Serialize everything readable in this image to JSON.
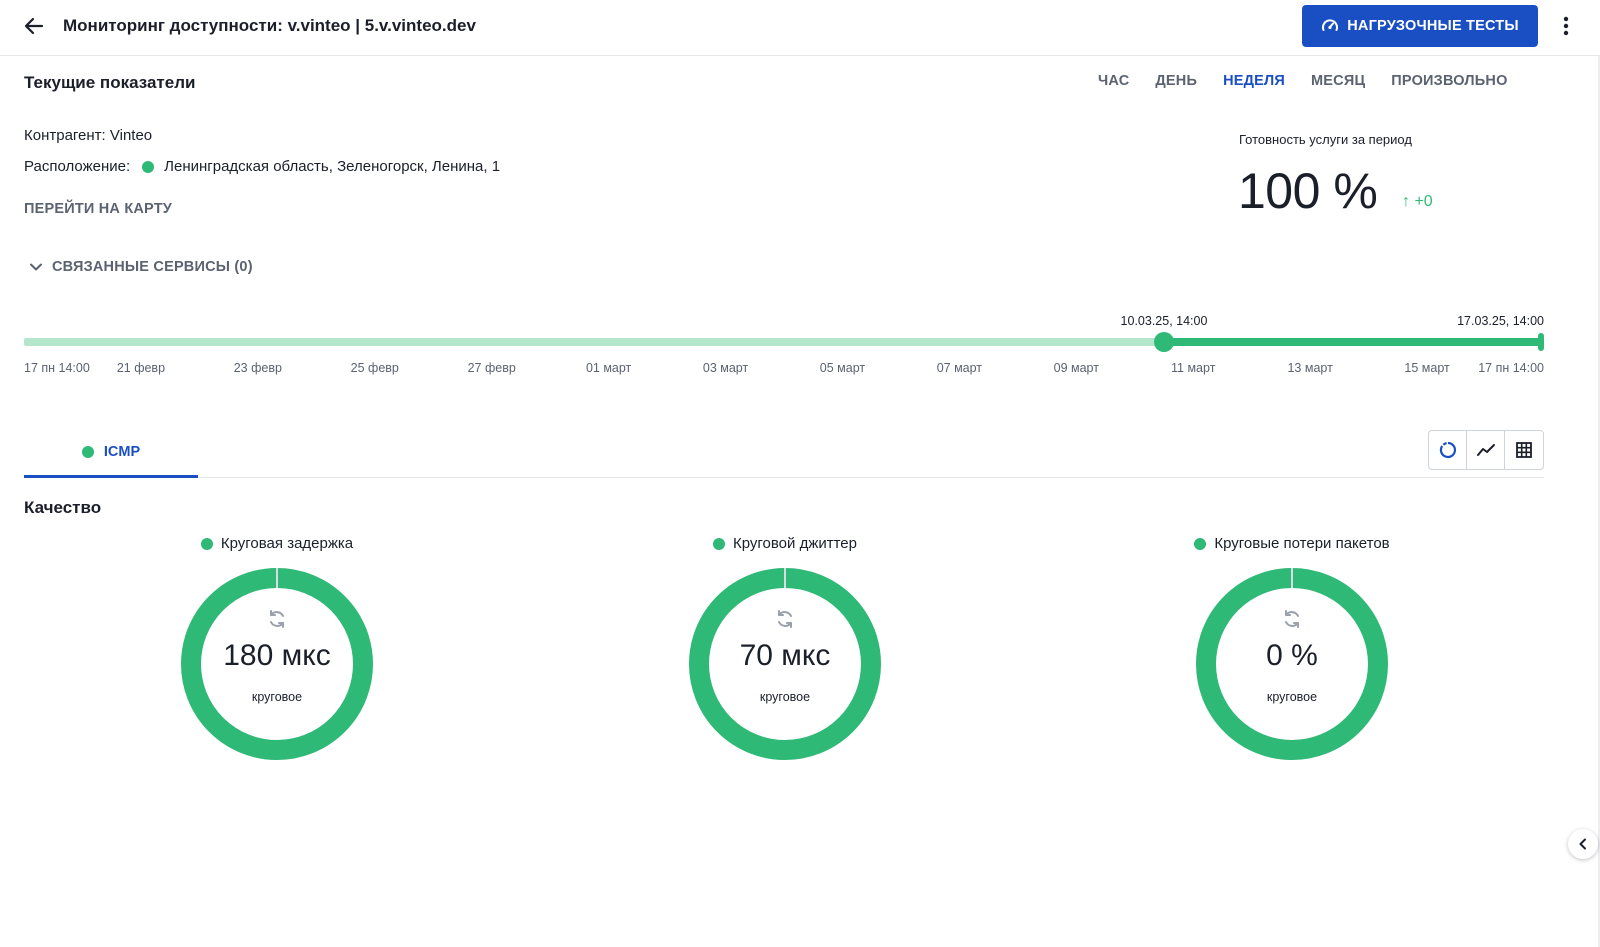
{
  "header": {
    "title": "Мониторинг доступности: v.vinteo | 5.v.vinteo.dev",
    "load_tests_label": "НАГРУЗОЧНЫЕ ТЕСТЫ"
  },
  "current": {
    "title": "Текущие показатели",
    "periods": [
      {
        "label": "ЧАС",
        "active": false
      },
      {
        "label": "ДЕНЬ",
        "active": false
      },
      {
        "label": "НЕДЕЛЯ",
        "active": true
      },
      {
        "label": "МЕСЯЦ",
        "active": false
      },
      {
        "label": "ПРОИЗВОЛЬНО",
        "active": false
      }
    ],
    "contractor": "Контрагент: Vinteo",
    "location_label": "Расположение:",
    "location_value": "Ленинградская область, Зеленогорск, Ленина, 1",
    "map_link": "ПЕРЕЙТИ НА КАРТУ",
    "related_services": "СВЯЗАННЫЕ СЕРВИСЫ (0)"
  },
  "availability": {
    "label": "Готовность услуги за период",
    "value": "100 %",
    "delta": "↑ +0"
  },
  "timeline": {
    "ticks": [
      "17 пн 14:00",
      "21 февр",
      "23 февр",
      "25 февр",
      "27 февр",
      "01 март",
      "03 март",
      "05 март",
      "07 март",
      "09 март",
      "11 март",
      "13 март",
      "15 март",
      "17 пн 14:00"
    ],
    "range_start_label": "10.03.25, 14:00",
    "range_end_label": "17.03.25, 14:00",
    "range_start_fraction": 0.75,
    "range_end_fraction": 1.0
  },
  "tabs": [
    {
      "label": "ICMP",
      "active": true
    }
  ],
  "quality": {
    "title": "Качество",
    "gauges": [
      {
        "legend": "Круговая задержка",
        "value": "180 мкс",
        "sub": "круговое",
        "fill": 1.0
      },
      {
        "legend": "Круговой джиттер",
        "value": "70 мкс",
        "sub": "круговое",
        "fill": 1.0
      },
      {
        "legend": "Круговые потери пакетов",
        "value": "0 %",
        "sub": "круговое",
        "fill": 1.0
      }
    ]
  },
  "colors": {
    "accent": "#1a4fc4",
    "success": "#2fb976",
    "track_light": "#b3e6cc"
  },
  "icons": [
    "arrow-left-icon",
    "speedometer-icon",
    "more-vertical-icon",
    "chevron-down-icon",
    "donut-chart-icon",
    "line-chart-icon",
    "table-icon",
    "refresh-icon",
    "chevron-left-icon"
  ]
}
